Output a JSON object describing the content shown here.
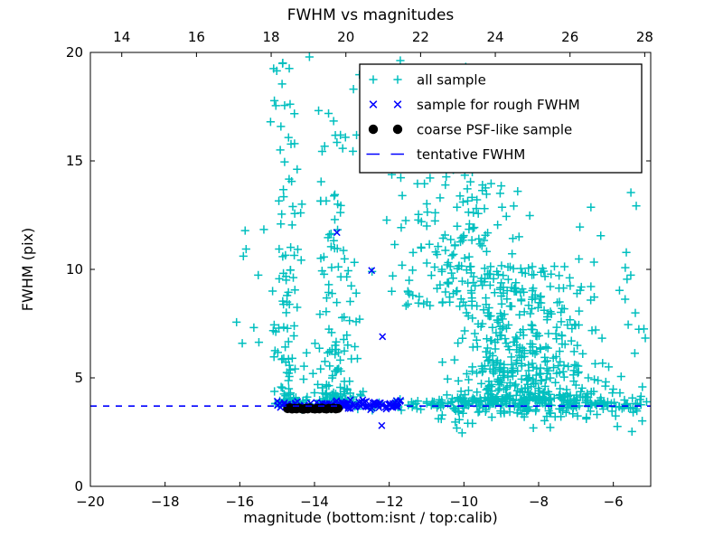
{
  "chart_data": {
    "type": "scatter",
    "title": "FWHM vs magnitudes",
    "xlabel": "magnitude (bottom:isnt / top:calib)",
    "ylabel": "FWHM (pix)",
    "seed": 20240917,
    "grid": false,
    "legend": {
      "position": "upper right"
    },
    "axes": {
      "bottom": {
        "range": [
          -20,
          -5
        ],
        "ticks": [
          {
            "v": -20,
            "label": "−20"
          },
          {
            "v": -18,
            "label": "−18"
          },
          {
            "v": -16,
            "label": "−16"
          },
          {
            "v": -14,
            "label": "−14"
          },
          {
            "v": -12,
            "label": "−12"
          },
          {
            "v": -10,
            "label": "−10"
          },
          {
            "v": -8,
            "label": "−8"
          },
          {
            "v": -6,
            "label": "−6"
          }
        ]
      },
      "top": {
        "range": [
          13.16,
          28.16
        ],
        "ticks": [
          {
            "v": 14,
            "label": "14"
          },
          {
            "v": 16,
            "label": "16"
          },
          {
            "v": 18,
            "label": "18"
          },
          {
            "v": 20,
            "label": "20"
          },
          {
            "v": 22,
            "label": "22"
          },
          {
            "v": 24,
            "label": "24"
          },
          {
            "v": 26,
            "label": "26"
          },
          {
            "v": 28,
            "label": "28"
          }
        ]
      },
      "y": {
        "range": [
          0,
          20
        ],
        "ticks": [
          {
            "v": 0,
            "label": "0"
          },
          {
            "v": 5,
            "label": "5"
          },
          {
            "v": 10,
            "label": "10"
          },
          {
            "v": 15,
            "label": "15"
          },
          {
            "v": 20,
            "label": "20"
          }
        ]
      }
    },
    "series": [
      {
        "name": "all_sample",
        "label": "all sample",
        "type": "scatter",
        "marker": "plus",
        "color": "#00bfbf",
        "size": 4.6,
        "stroke_width": 1.5,
        "clusters": [
          {
            "n": 120,
            "x": {
              "dist": "normal",
              "mu": -14.72,
              "sd": 0.2,
              "min": -15.25,
              "max": -14.25
            },
            "y": {
              "dist": "pow",
              "base": 3.8,
              "range": 16.0,
              "pow": 2.4
            }
          },
          {
            "n": 150,
            "x": {
              "dist": "normal",
              "mu": -13.45,
              "sd": 0.33,
              "min": -14.25,
              "max": -12.55
            },
            "y": {
              "dist": "pow",
              "base": 3.8,
              "range": 13.5,
              "pow": 2.6
            }
          },
          {
            "n": 34,
            "x": {
              "dist": "uniform",
              "min": -15.05,
              "max": -9.7
            },
            "y": {
              "dist": "uniform",
              "min": 14.5,
              "max": 19.9
            }
          },
          {
            "n": 165,
            "x": {
              "dist": "normal",
              "mu": -10.2,
              "sd": 1.05,
              "min": -12.55,
              "max": -7.9
            },
            "y": {
              "dist": "pow",
              "base": 8.3,
              "range": 6.3,
              "pow": 1.2
            }
          },
          {
            "n": 430,
            "x": {
              "dist": "normal",
              "mu": -8.45,
              "sd": 0.95,
              "min": -10.8,
              "max": -6.2
            },
            "y": {
              "dist": "pow",
              "base": 3.95,
              "range": 6.2,
              "pow": 2.0
            }
          },
          {
            "n": 200,
            "x": {
              "dist": "uniform",
              "min": -11.95,
              "max": -5.05
            },
            "y": {
              "dist": "normal",
              "mu": 3.8,
              "sd": 0.17,
              "min": 3.3,
              "max": 4.4
            }
          },
          {
            "n": 28,
            "x": {
              "dist": "uniform",
              "min": -14.85,
              "max": -11.95
            },
            "y": {
              "dist": "normal",
              "mu": 3.85,
              "sd": 0.22,
              "min": 3.3,
              "max": 4.5
            }
          },
          {
            "n": 42,
            "x": {
              "dist": "uniform",
              "min": -10.9,
              "max": -5.1
            },
            "y": {
              "dist": "pow",
              "base": 2.45,
              "range": 1.1,
              "pow": 0.7
            }
          },
          {
            "n": 40,
            "x": {
              "dist": "uniform",
              "min": -7.1,
              "max": -5.08
            },
            "y": {
              "dist": "pow",
              "base": 4.2,
              "range": 9.5,
              "pow": 1.6
            }
          },
          {
            "n": 9,
            "x": {
              "dist": "uniform",
              "min": -16.1,
              "max": -15.3
            },
            "y": {
              "dist": "uniform",
              "min": 3.9,
              "max": 13.3
            }
          }
        ],
        "points": []
      },
      {
        "name": "rough_fwhm_sample",
        "label": "sample for rough FWHM",
        "type": "scatter",
        "marker": "x",
        "color": "#0000ff",
        "size": 3.4,
        "stroke_width": 1.5,
        "clusters": [
          {
            "n": 40,
            "x": {
              "dist": "uniform",
              "min": -15.0,
              "max": -13.35
            },
            "y": {
              "dist": "normal",
              "mu": 3.75,
              "sd": 0.1,
              "min": 3.45,
              "max": 4.05
            }
          },
          {
            "n": 70,
            "x": {
              "dist": "uniform",
              "min": -13.35,
              "max": -11.68
            },
            "y": {
              "dist": "normal",
              "mu": 3.78,
              "sd": 0.11,
              "min": 3.4,
              "max": 4.1
            }
          }
        ],
        "points": [
          [
            -13.4,
            11.7
          ],
          [
            -12.47,
            9.95
          ],
          [
            -12.18,
            6.9
          ],
          [
            -12.2,
            2.8
          ]
        ]
      },
      {
        "name": "coarse_psf_sample",
        "label": "coarse PSF-like sample",
        "type": "scatter",
        "marker": "dot",
        "color": "#000000",
        "size": 5,
        "stroke_width": 1,
        "clusters": [],
        "points": [
          [
            -14.72,
            3.58
          ],
          [
            -14.66,
            3.62
          ],
          [
            -14.6,
            3.56
          ],
          [
            -14.54,
            3.6
          ],
          [
            -14.48,
            3.57
          ],
          [
            -14.42,
            3.61
          ],
          [
            -14.36,
            3.58
          ],
          [
            -14.3,
            3.55
          ],
          [
            -14.24,
            3.6
          ],
          [
            -14.18,
            3.57
          ],
          [
            -14.12,
            3.62
          ],
          [
            -14.05,
            3.58
          ],
          [
            -13.99,
            3.56
          ],
          [
            -13.93,
            3.6
          ],
          [
            -13.87,
            3.57
          ],
          [
            -13.8,
            3.61
          ],
          [
            -13.74,
            3.58
          ],
          [
            -13.68,
            3.56
          ],
          [
            -13.62,
            3.6
          ],
          [
            -13.55,
            3.58
          ],
          [
            -13.49,
            3.61
          ],
          [
            -13.43,
            3.57
          ],
          [
            -13.37,
            3.59
          ]
        ]
      },
      {
        "name": "tentative_fwhm",
        "label": "tentative FWHM",
        "type": "hline",
        "color": "#0000ff",
        "y_value": 3.7,
        "linestyle": "dashed",
        "stroke_width": 1.6
      }
    ]
  }
}
